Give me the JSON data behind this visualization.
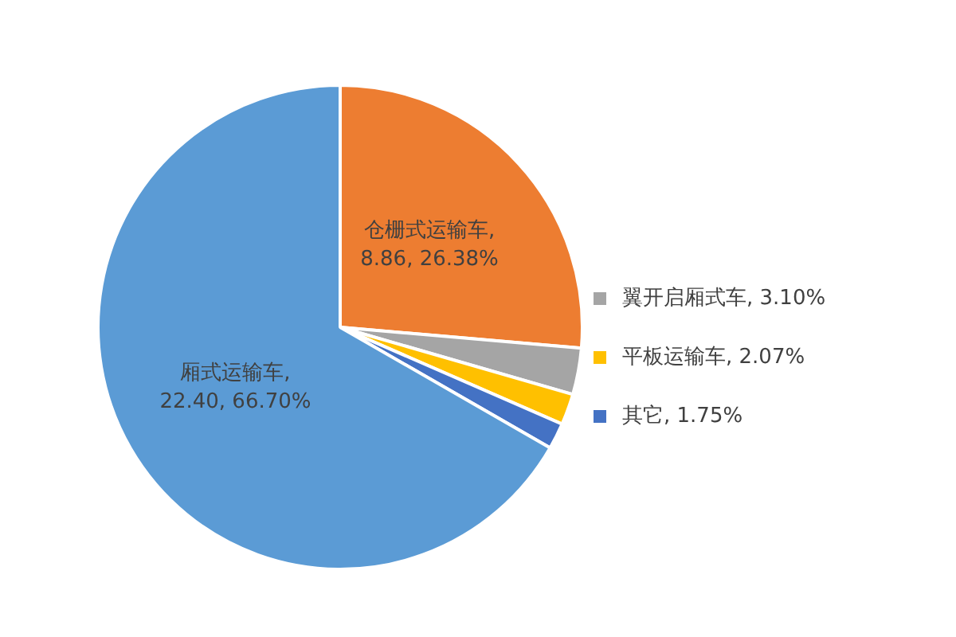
{
  "chart_data": {
    "type": "pie",
    "categories": [
      "仓栅式运输车",
      "翼开启厢式车",
      "平板运输车",
      "其它",
      "厢式运输车"
    ],
    "values": [
      26.38,
      3.1,
      2.07,
      1.75,
      66.7
    ],
    "colors": [
      "#ed7d31",
      "#a5a5a5",
      "#ffc000",
      "#4472c4",
      "#5b9bd5"
    ],
    "value_labels": [
      ", 8.86, 26.38%",
      ", 3.10%",
      ", 2.07%",
      ", 1.75%",
      ", 22.40, 66.70%"
    ],
    "legend": "right"
  }
}
